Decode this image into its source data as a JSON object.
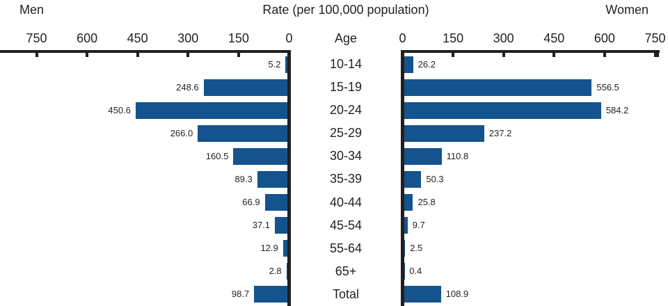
{
  "header": {
    "left": "Men",
    "title": "Rate (per 100,000 population)",
    "right": "Women",
    "age": "Age"
  },
  "axes": {
    "left_ticks": [
      750,
      600,
      450,
      300,
      150,
      0
    ],
    "right_ticks": [
      0,
      150,
      300,
      450,
      600,
      750
    ],
    "max": 750,
    "tick_interval": 150
  },
  "chart_data": {
    "type": "bar",
    "orientation": "horizontal-diverging",
    "title": "Rate (per 100,000 population)",
    "xlabel": "Rate (per 100,000 population)",
    "ylabel": "Age",
    "xlim": [
      0,
      750
    ],
    "grid": false,
    "legend_position": "top",
    "categories": [
      "10-14",
      "15-19",
      "20-24",
      "25-29",
      "30-34",
      "35-39",
      "40-44",
      "45-54",
      "55-64",
      "65+",
      "Total"
    ],
    "series": [
      {
        "name": "Men",
        "side": "left",
        "labels": [
          "5.2",
          "248.6",
          "450.6",
          "266.0",
          "160.5",
          "89.3",
          "66.9",
          "37.1",
          "12.9",
          "2.8",
          "98.7"
        ],
        "values": [
          5.2,
          248.6,
          450.6,
          266.0,
          160.5,
          89.3,
          66.9,
          37.1,
          12.9,
          2.8,
          98.7
        ]
      },
      {
        "name": "Women",
        "side": "right",
        "labels": [
          "26.2",
          "556.5",
          "584.2",
          "237.2",
          "110.8",
          "50.3",
          "25.8",
          "9.7",
          "2.5",
          "0.4",
          "108.9"
        ],
        "values": [
          26.2,
          556.5,
          584.2,
          237.2,
          110.8,
          50.3,
          25.8,
          9.7,
          2.5,
          0.4,
          108.9
        ]
      }
    ],
    "bar_color": "#14538D"
  },
  "colors": {
    "bar": "#14538D",
    "axis": "#231f20",
    "text": "#231f20"
  }
}
